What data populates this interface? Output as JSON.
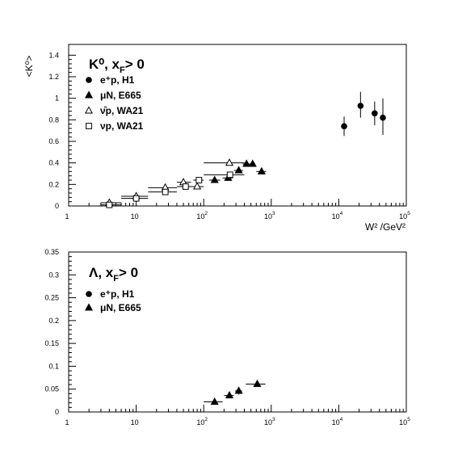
{
  "chart_data": [
    {
      "type": "scatter",
      "x_scale": "log",
      "xlim": [
        1,
        100000
      ],
      "ylim": [
        0,
        1.5
      ],
      "ylabel": "<K⁰>",
      "xlabel": "W² /GeV²",
      "x_tick_labels": [
        "1",
        "10",
        "10",
        "10",
        "10",
        "10"
      ],
      "x_tick_exponents": [
        "",
        "",
        "2",
        "3",
        "4",
        "5"
      ],
      "y_ticks": [
        0,
        0.2,
        0.4,
        0.6,
        0.8,
        1,
        1.2,
        1.4
      ],
      "y_tick_labels": [
        "0",
        "0.2",
        "0.4",
        "0.6",
        "0.8",
        "1",
        "1.2",
        "1.4"
      ],
      "legend_title": "K⁰, x_F> 0",
      "legend_title_main": "K⁰, x",
      "legend_title_sub": "F",
      "legend_title_rest": "> 0",
      "series": [
        {
          "name": "e⁺p, H1",
          "marker": "filled-circle",
          "points": [
            {
              "x": 12000,
              "y": 0.74,
              "xlo": 12000,
              "xhi": 12000,
              "ylo": 0.65,
              "yhi": 0.83
            },
            {
              "x": 21000,
              "y": 0.93,
              "xlo": 21000,
              "xhi": 21000,
              "ylo": 0.82,
              "yhi": 1.06
            },
            {
              "x": 34000,
              "y": 0.86,
              "xlo": 34000,
              "xhi": 34000,
              "ylo": 0.75,
              "yhi": 0.97
            },
            {
              "x": 45000,
              "y": 0.82,
              "xlo": 45000,
              "xhi": 45000,
              "ylo": 0.66,
              "yhi": 1.0
            }
          ]
        },
        {
          "name": "μN, E665",
          "marker": "filled-triangle",
          "points": [
            {
              "x": 145,
              "y": 0.24,
              "xlo": 120,
              "xhi": 175,
              "ylo": 0.24,
              "yhi": 0.24
            },
            {
              "x": 230,
              "y": 0.26,
              "xlo": 190,
              "xhi": 270,
              "ylo": 0.26,
              "yhi": 0.26
            },
            {
              "x": 330,
              "y": 0.33,
              "xlo": 280,
              "xhi": 380,
              "ylo": 0.33,
              "yhi": 0.33
            },
            {
              "x": 430,
              "y": 0.39,
              "xlo": 380,
              "xhi": 480,
              "ylo": 0.39,
              "yhi": 0.39
            },
            {
              "x": 530,
              "y": 0.39,
              "xlo": 480,
              "xhi": 580,
              "ylo": 0.39,
              "yhi": 0.39
            },
            {
              "x": 720,
              "y": 0.32,
              "xlo": 600,
              "xhi": 840,
              "ylo": 0.32,
              "yhi": 0.32
            }
          ]
        },
        {
          "name": "ν̄p, WA21",
          "marker": "open-triangle",
          "points": [
            {
              "x": 4,
              "y": 0.03,
              "xlo": 3,
              "xhi": 6,
              "ylo": 0.03,
              "yhi": 0.03
            },
            {
              "x": 10,
              "y": 0.09,
              "xlo": 6,
              "xhi": 15,
              "ylo": 0.09,
              "yhi": 0.09
            },
            {
              "x": 27,
              "y": 0.17,
              "xlo": 15,
              "xhi": 40,
              "ylo": 0.17,
              "yhi": 0.17
            },
            {
              "x": 50,
              "y": 0.22,
              "xlo": 40,
              "xhi": 65,
              "ylo": 0.22,
              "yhi": 0.22
            },
            {
              "x": 80,
              "y": 0.18,
              "xlo": 65,
              "xhi": 100,
              "ylo": 0.18,
              "yhi": 0.18
            },
            {
              "x": 240,
              "y": 0.4,
              "xlo": 100,
              "xhi": 400,
              "ylo": 0.4,
              "yhi": 0.4
            }
          ]
        },
        {
          "name": "νp, WA21",
          "marker": "open-square",
          "points": [
            {
              "x": 4,
              "y": 0.01,
              "xlo": 3,
              "xhi": 6,
              "ylo": 0.01,
              "yhi": 0.01
            },
            {
              "x": 10,
              "y": 0.07,
              "xlo": 6,
              "xhi": 15,
              "ylo": 0.07,
              "yhi": 0.07
            },
            {
              "x": 27,
              "y": 0.13,
              "xlo": 15,
              "xhi": 40,
              "ylo": 0.13,
              "yhi": 0.13
            },
            {
              "x": 54,
              "y": 0.18,
              "xlo": 40,
              "xhi": 70,
              "ylo": 0.18,
              "yhi": 0.18
            },
            {
              "x": 85,
              "y": 0.24,
              "xlo": 70,
              "xhi": 100,
              "ylo": 0.24,
              "yhi": 0.24
            },
            {
              "x": 245,
              "y": 0.29,
              "xlo": 100,
              "xhi": 400,
              "ylo": 0.29,
              "yhi": 0.29
            }
          ]
        }
      ]
    },
    {
      "type": "scatter",
      "x_scale": "log",
      "xlim": [
        1,
        100000
      ],
      "ylim": [
        0,
        0.35
      ],
      "x_tick_labels": [
        "1",
        "10",
        "10",
        "10",
        "10",
        "10"
      ],
      "x_tick_exponents": [
        "",
        "",
        "2",
        "3",
        "4",
        "5"
      ],
      "y_ticks": [
        0,
        0.05,
        0.1,
        0.15,
        0.2,
        0.25,
        0.3,
        0.35
      ],
      "y_tick_labels": [
        "0",
        "0.05",
        "0.1",
        "0.15",
        "0.2",
        "0.25",
        "0.3",
        "0.35"
      ],
      "legend_title": "Λ, x_F> 0",
      "legend_title_main": "Λ, x",
      "legend_title_sub": "F",
      "legend_title_rest": "> 0",
      "series": [
        {
          "name": "e⁺p, H1",
          "marker": "filled-circle",
          "points": []
        },
        {
          "name": "μN, E665",
          "marker": "filled-triangle",
          "points": [
            {
              "x": 145,
              "y": 0.022,
              "xlo": 100,
              "xhi": 190,
              "ylo": 0.022,
              "yhi": 0.022
            },
            {
              "x": 240,
              "y": 0.036,
              "xlo": 200,
              "xhi": 280,
              "ylo": 0.036,
              "yhi": 0.036
            },
            {
              "x": 330,
              "y": 0.046,
              "xlo": 290,
              "xhi": 370,
              "ylo": 0.038,
              "yhi": 0.054
            },
            {
              "x": 620,
              "y": 0.061,
              "xlo": 420,
              "xhi": 820,
              "ylo": 0.061,
              "yhi": 0.061
            }
          ]
        }
      ]
    }
  ]
}
